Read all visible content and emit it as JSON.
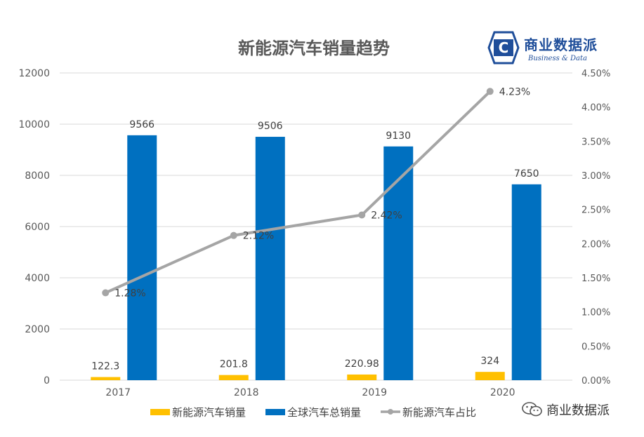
{
  "chart_data": {
    "type": "bar",
    "title": "新能源汽车销量趋势",
    "categories": [
      "2017",
      "2018",
      "2019",
      "2020"
    ],
    "series": [
      {
        "name": "新能源汽车销量",
        "type": "bar",
        "axis": "left",
        "color": "#FFC000",
        "values": [
          122.3,
          201.8,
          220.98,
          324
        ],
        "labels": [
          "122.3",
          "201.8",
          "220.98",
          "324"
        ]
      },
      {
        "name": "全球汽车总销量",
        "type": "bar",
        "axis": "left",
        "color": "#0070C0",
        "values": [
          9566,
          9506,
          9130,
          7650
        ],
        "labels": [
          "9566",
          "9506",
          "9130",
          "7650"
        ]
      },
      {
        "name": "新能源汽车占比",
        "type": "line",
        "axis": "right",
        "color": "#A5A5A5",
        "values": [
          1.28,
          2.12,
          2.42,
          4.23
        ],
        "labels": [
          "1.28%",
          "2.12%",
          "2.42%",
          "4.23%"
        ]
      }
    ],
    "y_left": {
      "ylim": [
        0,
        12000
      ],
      "ticks": [
        0,
        2000,
        4000,
        6000,
        8000,
        10000,
        12000
      ],
      "tick_labels": [
        "0",
        "2000",
        "4000",
        "6000",
        "8000",
        "10000",
        "12000"
      ]
    },
    "y_right": {
      "ylim": [
        0,
        4.5
      ],
      "ticks": [
        0,
        0.5,
        1.0,
        1.5,
        2.0,
        2.5,
        3.0,
        3.5,
        4.0,
        4.5
      ],
      "tick_labels": [
        "0.00%",
        "0.50%",
        "1.00%",
        "1.50%",
        "2.00%",
        "2.50%",
        "3.00%",
        "3.50%",
        "4.00%",
        "4.50%"
      ]
    },
    "grid": true,
    "legend": "bottom"
  },
  "branding": {
    "logo_text": "商业数据派",
    "logo_subtitle": "Business & Data",
    "logo_letter": "C",
    "watermark": "商业数据派",
    "brand_color": "#1F4E9A"
  },
  "colors": {
    "gridline": "#D9D9D9",
    "text": "#595959",
    "title": "#595959"
  }
}
